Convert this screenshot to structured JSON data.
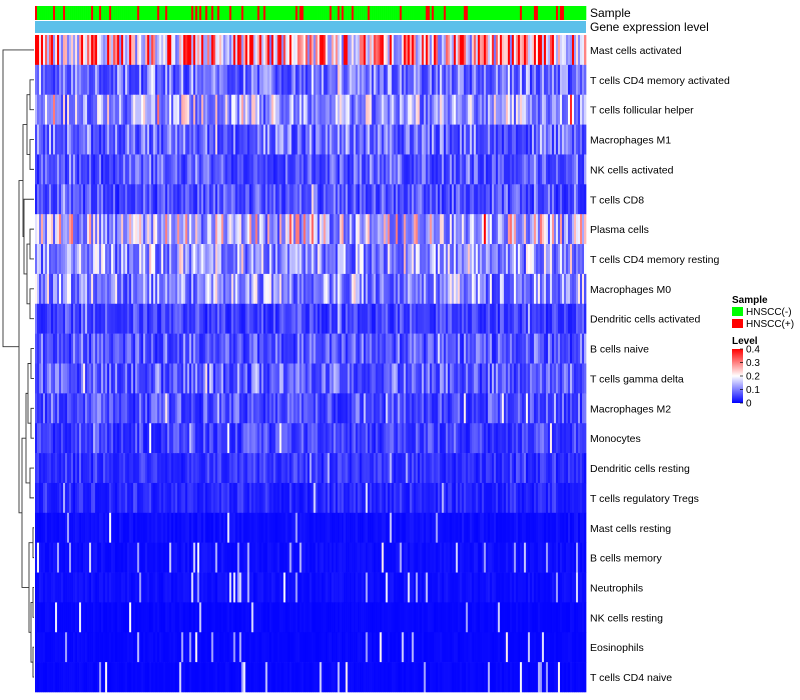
{
  "chart_data": {
    "type": "heatmap",
    "title": "",
    "annotation_rows": [
      "Sample",
      "Gene expression level"
    ],
    "rows": [
      {
        "name": "Mast cells activated",
        "mean": 0.27
      },
      {
        "name": "T cells CD4 memory activated",
        "mean": 0.09
      },
      {
        "name": "T cells follicular helper",
        "mean": 0.13
      },
      {
        "name": "Macrophages M1",
        "mean": 0.08
      },
      {
        "name": "NK cells activated",
        "mean": 0.07
      },
      {
        "name": "T cells CD8",
        "mean": 0.06
      },
      {
        "name": "Plasma cells",
        "mean": 0.15
      },
      {
        "name": "T cells CD4 memory resting",
        "mean": 0.12
      },
      {
        "name": "Macrophages M0",
        "mean": 0.11
      },
      {
        "name": "Dendritic cells activated",
        "mean": 0.05
      },
      {
        "name": "B cells naive",
        "mean": 0.07
      },
      {
        "name": "T cells gamma delta",
        "mean": 0.07
      },
      {
        "name": "Macrophages M2",
        "mean": 0.06
      },
      {
        "name": "Monocytes",
        "mean": 0.05
      },
      {
        "name": "Dendritic cells resting",
        "mean": 0.04
      },
      {
        "name": "T cells regulatory  Tregs",
        "mean": 0.03
      },
      {
        "name": "Mast cells resting",
        "mean": 0.01
      },
      {
        "name": "B cells memory",
        "mean": 0.01
      },
      {
        "name": "Neutrophils",
        "mean": 0.01
      },
      {
        "name": "NK cells resting",
        "mean": 0.005
      },
      {
        "name": "Eosinophils",
        "mean": 0.005
      },
      {
        "name": "T cells CD4 naive",
        "mean": 0.005
      }
    ],
    "n_samples": 275,
    "sample_legend": {
      "title": "Sample",
      "items": [
        {
          "label": "HNSCC(-)",
          "color": "#00ff00"
        },
        {
          "label": "HNSCC(+)",
          "color": "#ff0000"
        }
      ]
    },
    "level_legend": {
      "title": "Level",
      "ticks": [
        "0.4",
        "0.3",
        "0.2",
        "0.1",
        "0"
      ],
      "range": [
        0,
        0.4
      ],
      "colors": [
        "#0000ff",
        "#ffffff",
        "#ff0000"
      ]
    },
    "gene_expression_color": "#5bc0ea"
  }
}
